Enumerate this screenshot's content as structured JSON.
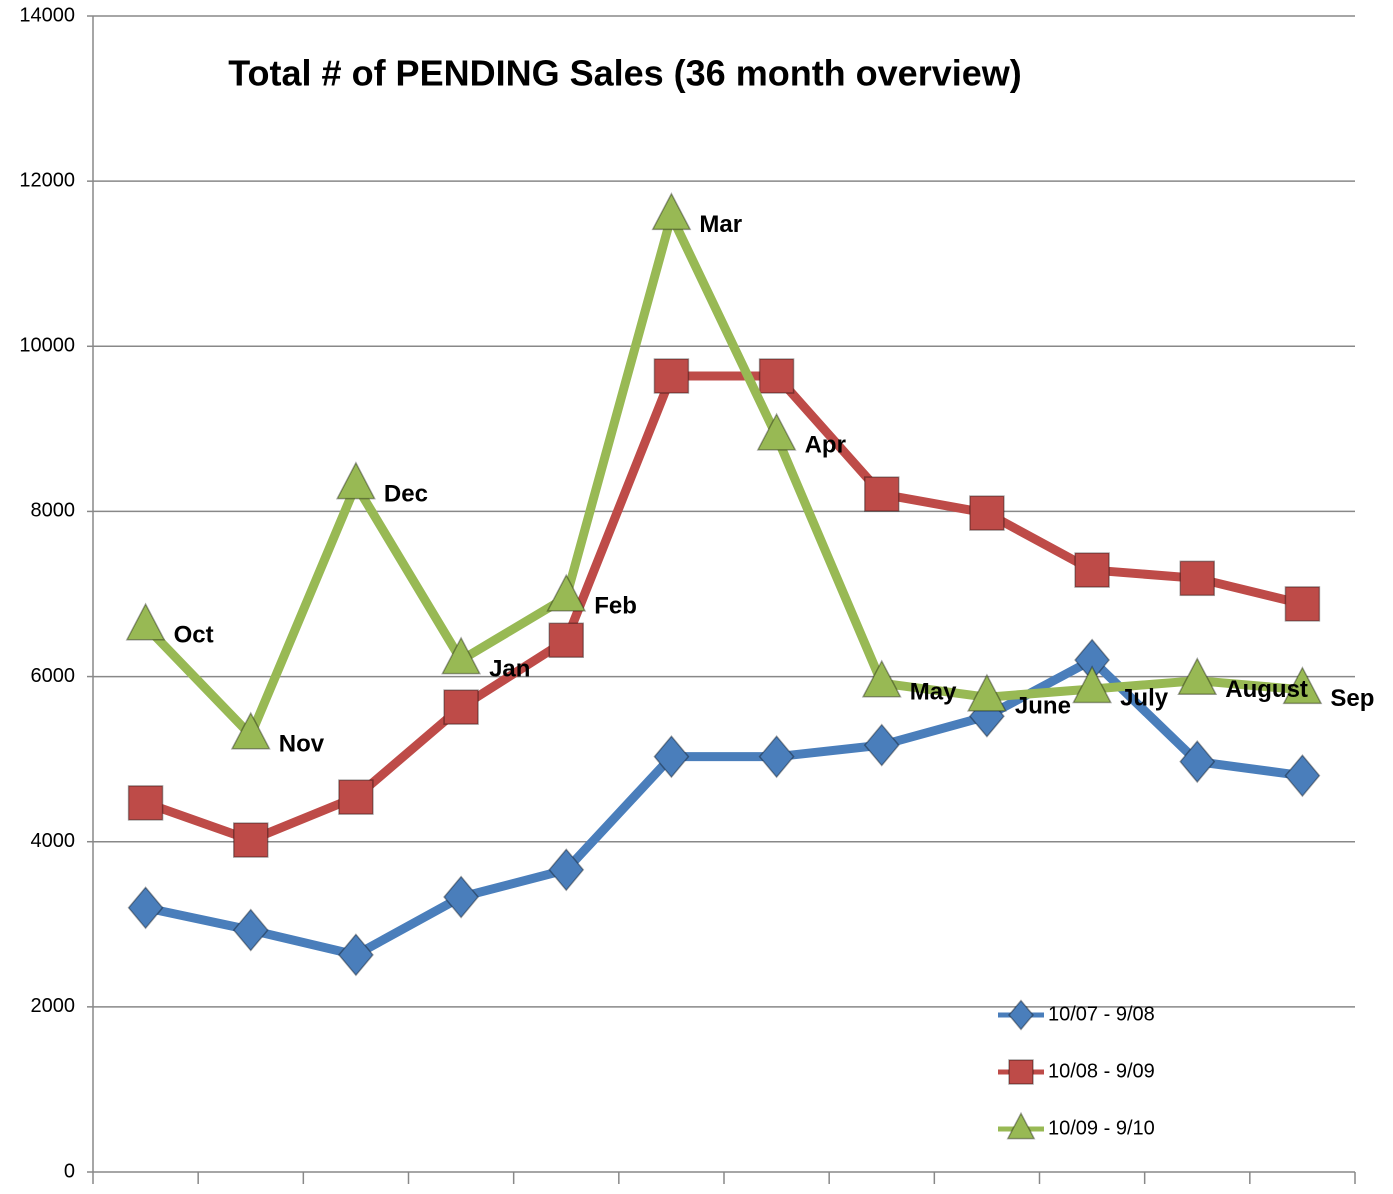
{
  "chart_data": {
    "type": "line",
    "title": "Total # of PENDING Sales  (36 month overview)",
    "categories": [
      "Oct",
      "Nov",
      "Dec",
      "Jan",
      "Feb",
      "Mar",
      "Apr",
      "May",
      "June",
      "July",
      "August",
      "Sep"
    ],
    "series": [
      {
        "name": "10/07 - 9/08",
        "color": "#4a7ebb",
        "marker": "diamond",
        "values": [
          3200,
          2930,
          2630,
          3330,
          3660,
          5030,
          5030,
          5170,
          5520,
          6200,
          4970,
          4800
        ]
      },
      {
        "name": "10/08 - 9/09",
        "color": "#be4b48",
        "marker": "square",
        "values": [
          4470,
          4020,
          4540,
          5630,
          6440,
          9640,
          9640,
          8210,
          7980,
          7290,
          7190,
          6880
        ]
      },
      {
        "name": "10/09 - 9/10",
        "color": "#98b954",
        "marker": "triangle",
        "values": [
          6610,
          5290,
          8320,
          6200,
          6960,
          11580,
          8910,
          5920,
          5750,
          5850,
          5950,
          5840
        ]
      }
    ],
    "ylim": [
      0,
      14000
    ],
    "yticks": [
      0,
      2000,
      4000,
      6000,
      8000,
      10000,
      12000,
      14000
    ],
    "grid": true,
    "legend": "lower right"
  }
}
